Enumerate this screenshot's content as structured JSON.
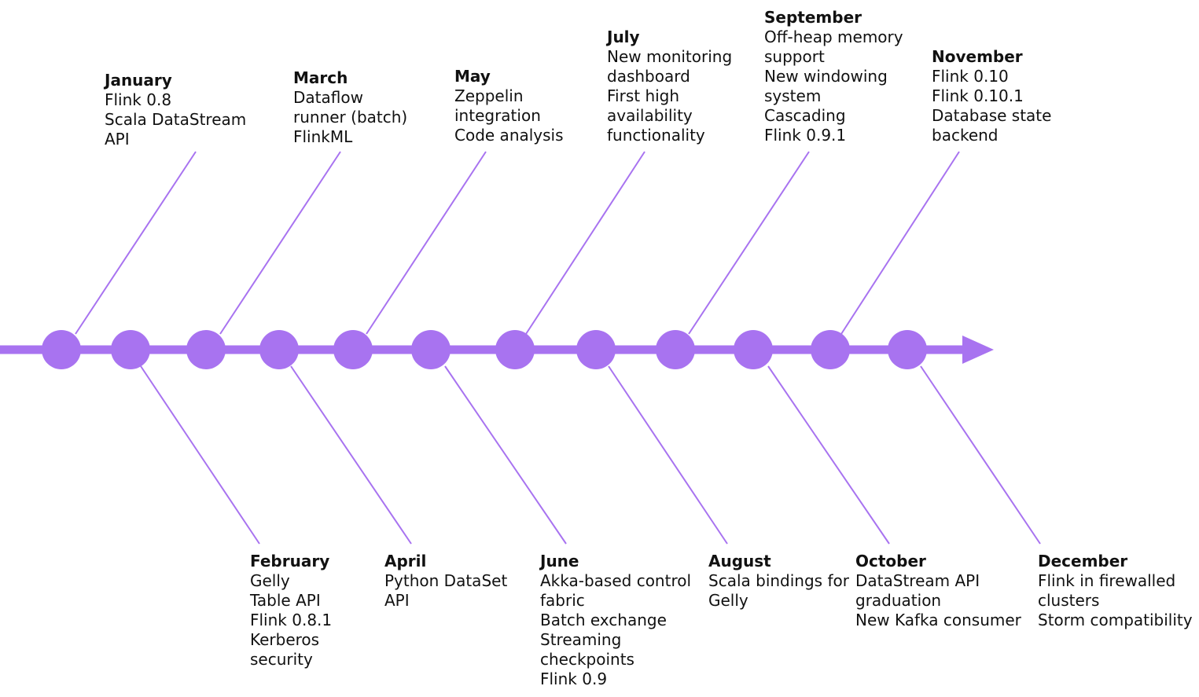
{
  "accent_color": "#a873f0",
  "months": [
    {
      "id": "jan",
      "side": "top",
      "name": "January",
      "items": [
        "Flink 0.8",
        "Scala DataStream",
        "API"
      ]
    },
    {
      "id": "feb",
      "side": "bottom",
      "name": "February",
      "items": [
        "Gelly",
        "Table API",
        "Flink 0.8.1",
        "Kerberos",
        "security"
      ]
    },
    {
      "id": "mar",
      "side": "top",
      "name": "March",
      "items": [
        "Dataflow",
        "runner (batch)",
        "FlinkML"
      ]
    },
    {
      "id": "apr",
      "side": "bottom",
      "name": "April",
      "items": [
        "Python DataSet",
        "API"
      ]
    },
    {
      "id": "may",
      "side": "top",
      "name": "May",
      "items": [
        "Zeppelin",
        "integration",
        "Code analysis"
      ]
    },
    {
      "id": "jun",
      "side": "bottom",
      "name": "June",
      "items": [
        "Akka-based control",
        "fabric",
        "Batch exchange",
        "Streaming",
        "checkpoints",
        "Flink 0.9"
      ]
    },
    {
      "id": "jul",
      "side": "top",
      "name": "July",
      "items": [
        "New monitoring",
        "dashboard",
        "First high",
        "availability",
        "functionality"
      ]
    },
    {
      "id": "aug",
      "side": "bottom",
      "name": "August",
      "items": [
        "Scala bindings for",
        "Gelly"
      ]
    },
    {
      "id": "sep",
      "side": "top",
      "name": "September",
      "items": [
        "Off-heap memory",
        "support",
        "New windowing",
        "system",
        "Cascading",
        "Flink 0.9.1"
      ]
    },
    {
      "id": "oct",
      "side": "bottom",
      "name": "October",
      "items": [
        "DataStream API",
        "graduation",
        "New Kafka consumer"
      ]
    },
    {
      "id": "nov",
      "side": "top",
      "name": "November",
      "items": [
        "Flink 0.10",
        "Flink 0.10.1",
        "Database state",
        "backend"
      ]
    },
    {
      "id": "dec",
      "side": "bottom",
      "name": "December",
      "items": [
        "Flink in firewalled",
        "clusters",
        "Storm compatibility"
      ]
    }
  ]
}
